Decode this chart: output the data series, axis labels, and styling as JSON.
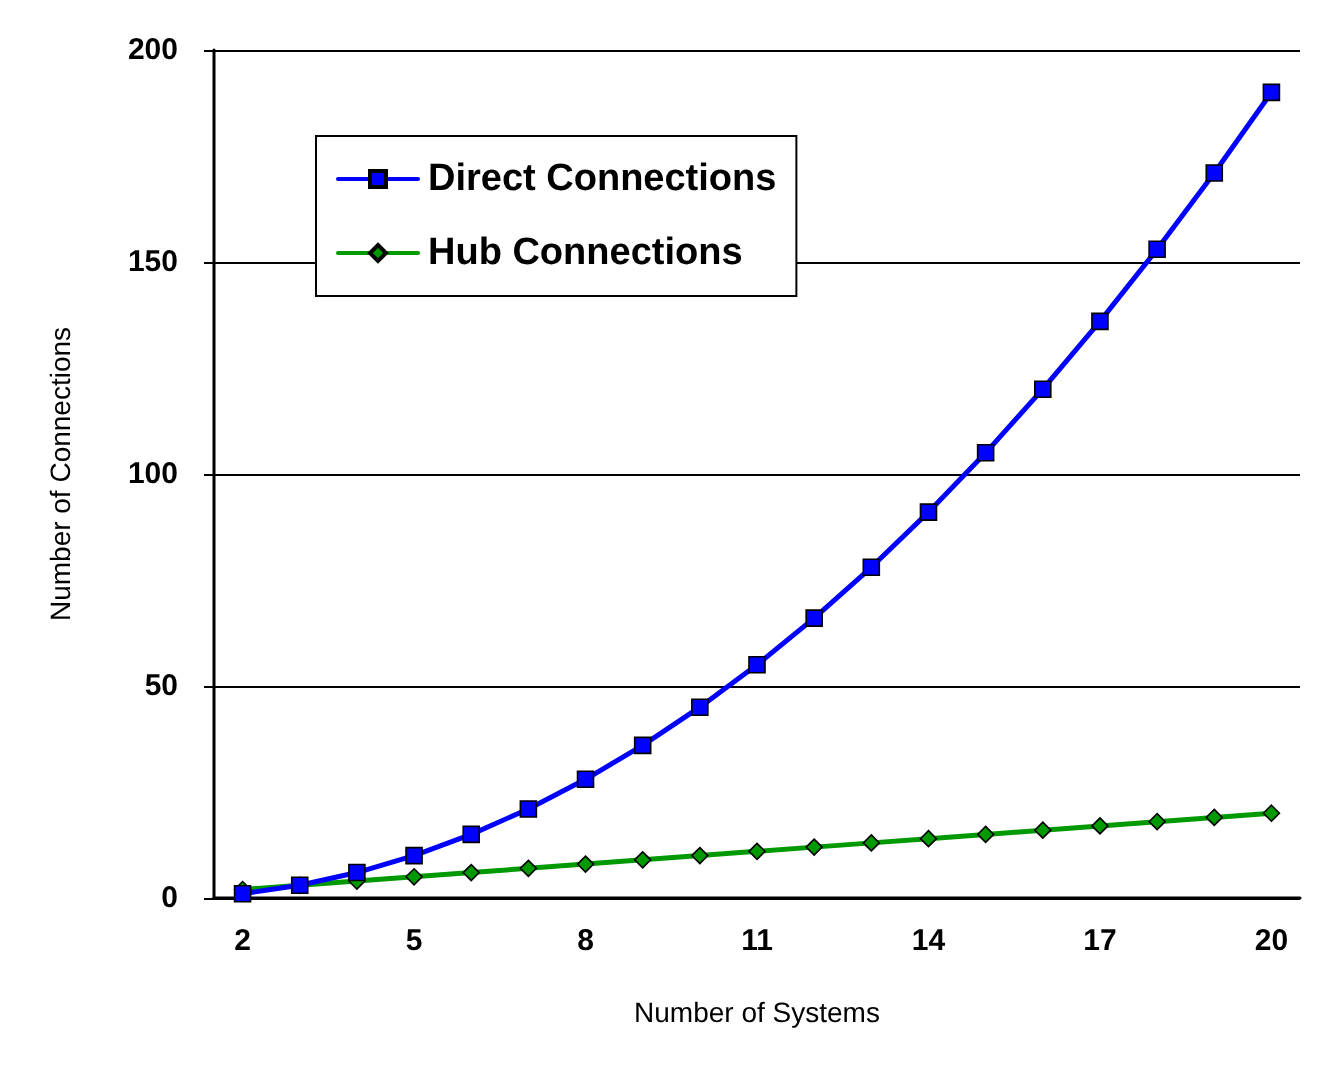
{
  "chart_data": {
    "type": "line",
    "xlabel": "Number of Systems",
    "ylabel": "Number of Connections",
    "categories": [
      "2",
      null,
      null,
      "5",
      null,
      null,
      "8",
      null,
      null,
      "11",
      null,
      null,
      "14",
      null,
      null,
      "17",
      null,
      null,
      "20"
    ],
    "series": [
      {
        "name": "Direct Connections",
        "color": "#0000ff",
        "marker": "square",
        "values": [
          1,
          3,
          6,
          10,
          15,
          21,
          28,
          36,
          45,
          55,
          66,
          78,
          91,
          105,
          120,
          136,
          153,
          171,
          190
        ]
      },
      {
        "name": "Hub Connections",
        "color": "#009900",
        "marker": "diamond",
        "values": [
          2,
          3,
          4,
          5,
          6,
          7,
          8,
          9,
          10,
          11,
          12,
          13,
          14,
          15,
          16,
          17,
          18,
          19,
          20
        ]
      }
    ],
    "ylim": [
      0,
      200
    ],
    "yticks": [
      0,
      50,
      100,
      150,
      200
    ],
    "grid": "y",
    "legend": "top left",
    "line_style": "solid"
  }
}
